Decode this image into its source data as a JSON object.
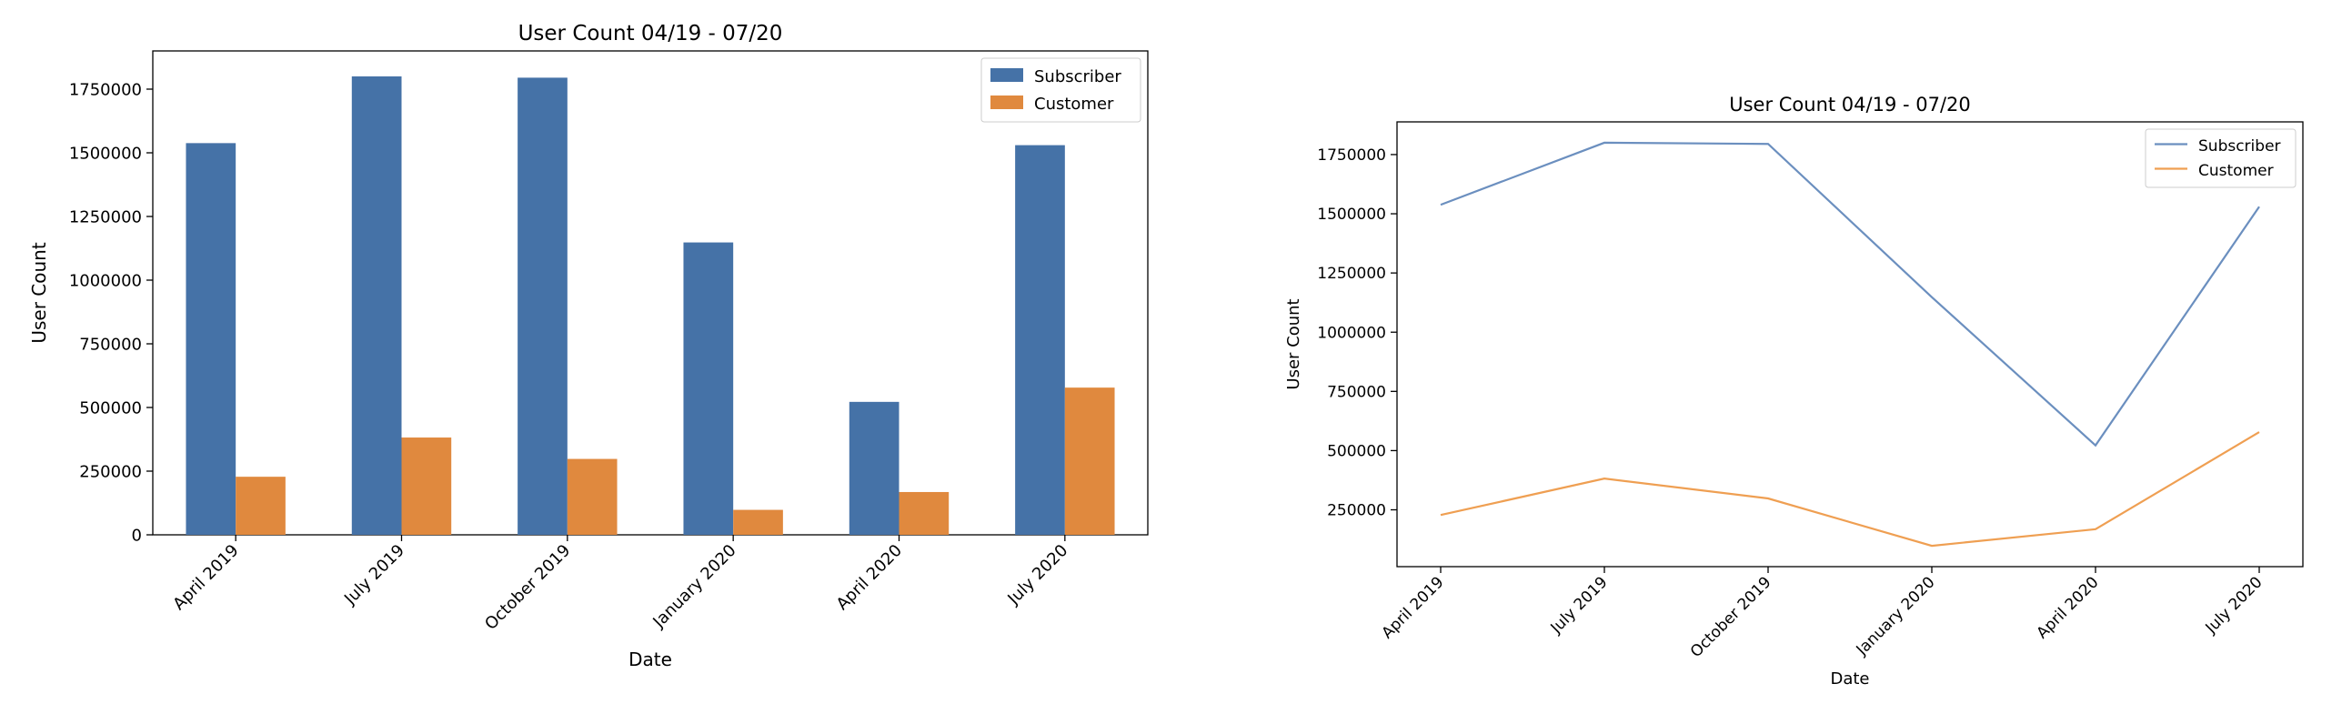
{
  "chart_data": [
    {
      "type": "bar",
      "title": "User Count 04/19 - 07/20",
      "xlabel": "Date",
      "ylabel": "User Count",
      "categories": [
        "April 2019",
        "July 2019",
        "October 2019",
        "January 2020",
        "April 2020",
        "July 2020"
      ],
      "series": [
        {
          "name": "Subscriber",
          "color": "#4572a7",
          "values": [
            1538000,
            1800000,
            1795000,
            1148000,
            522000,
            1530000
          ]
        },
        {
          "name": "Customer",
          "color": "#e0893e",
          "values": [
            228000,
            382000,
            298000,
            98000,
            168000,
            578000
          ]
        }
      ],
      "ylim": [
        0,
        1900000
      ],
      "yticks": [
        0,
        250000,
        500000,
        750000,
        1000000,
        1250000,
        1500000,
        1750000
      ],
      "legend": "top-right",
      "grid": false
    },
    {
      "type": "line",
      "title": "User Count 04/19 - 07/20",
      "xlabel": "Date",
      "ylabel": "User Count",
      "categories": [
        "April 2019",
        "July 2019",
        "October 2019",
        "January 2020",
        "April 2020",
        "July 2020"
      ],
      "series": [
        {
          "name": "Subscriber",
          "color": "#6b8fbf",
          "values": [
            1538000,
            1800000,
            1795000,
            1148000,
            522000,
            1530000
          ]
        },
        {
          "name": "Customer",
          "color": "#ef9f52",
          "values": [
            228000,
            382000,
            298000,
            98000,
            168000,
            578000
          ]
        }
      ],
      "ylim": [
        10000,
        1888000
      ],
      "yticks": [
        250000,
        500000,
        750000,
        1000000,
        1250000,
        1500000,
        1750000
      ],
      "legend": "top-right",
      "grid": false
    }
  ]
}
